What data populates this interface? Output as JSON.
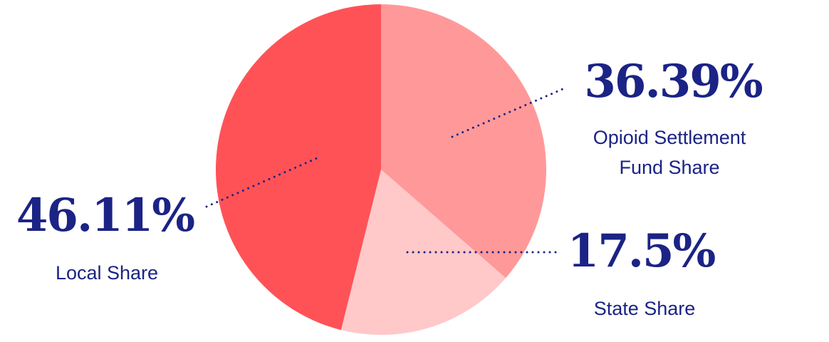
{
  "chart_data": {
    "type": "pie",
    "categories": [
      "Opioid Settlement Fund Share",
      "State Share",
      "Local Share"
    ],
    "values": [
      36.39,
      17.5,
      46.11
    ],
    "value_labels": [
      "36.39%",
      "17.5%",
      "46.11%"
    ],
    "colors": [
      "#ff9999",
      "#ffc8c9",
      "#ff5257"
    ]
  }
}
